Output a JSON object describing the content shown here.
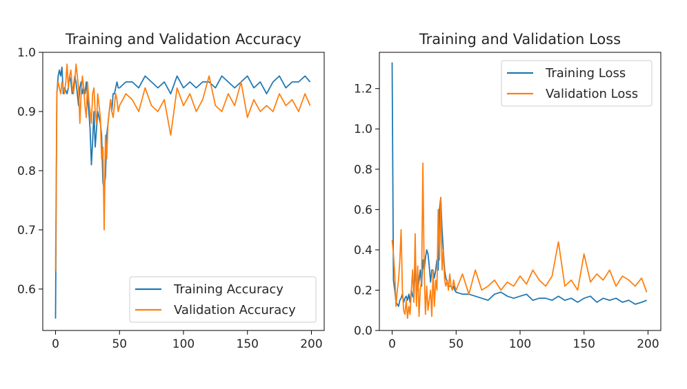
{
  "chart_data": [
    {
      "type": "line",
      "title": "Training and Validation Accuracy",
      "xlabel": "",
      "ylabel": "",
      "xlim": [
        -10,
        210
      ],
      "ylim": [
        0.53,
        1.0
      ],
      "xticks": [
        0,
        50,
        100,
        150,
        200
      ],
      "yticks": [
        0.6,
        0.7,
        0.8,
        0.9,
        1.0
      ],
      "yticklabels": [
        "0.6",
        "0.7",
        "0.8",
        "0.9",
        "1.0"
      ],
      "grid": false,
      "legend": "lower-right",
      "series": [
        {
          "name": "Training Accuracy",
          "color": "#1f77b4",
          "x": [
            0,
            1,
            2,
            3,
            4,
            5,
            6,
            7,
            8,
            9,
            10,
            11,
            12,
            13,
            14,
            15,
            16,
            17,
            18,
            19,
            20,
            21,
            22,
            23,
            24,
            25,
            26,
            27,
            28,
            29,
            30,
            31,
            32,
            33,
            34,
            35,
            36,
            37,
            38,
            39,
            40,
            41,
            42,
            43,
            44,
            45,
            46,
            47,
            48,
            49,
            50,
            55,
            60,
            65,
            70,
            75,
            80,
            85,
            90,
            95,
            100,
            105,
            110,
            115,
            120,
            125,
            130,
            135,
            140,
            145,
            150,
            155,
            160,
            165,
            170,
            175,
            180,
            185,
            190,
            195,
            199
          ],
          "values": [
            0.55,
            0.93,
            0.96,
            0.97,
            0.96,
            0.975,
            0.93,
            0.94,
            0.935,
            0.93,
            0.94,
            0.96,
            0.95,
            0.93,
            0.94,
            0.96,
            0.95,
            0.93,
            0.91,
            0.94,
            0.95,
            0.93,
            0.94,
            0.93,
            0.95,
            0.92,
            0.9,
            0.87,
            0.81,
            0.85,
            0.9,
            0.84,
            0.87,
            0.9,
            0.89,
            0.88,
            0.86,
            0.78,
            0.77,
            0.79,
            0.86,
            0.88,
            0.9,
            0.92,
            0.9,
            0.93,
            0.93,
            0.94,
            0.95,
            0.94,
            0.94,
            0.95,
            0.95,
            0.94,
            0.96,
            0.95,
            0.94,
            0.95,
            0.93,
            0.96,
            0.94,
            0.95,
            0.94,
            0.95,
            0.95,
            0.94,
            0.96,
            0.95,
            0.94,
            0.95,
            0.96,
            0.94,
            0.95,
            0.93,
            0.95,
            0.96,
            0.94,
            0.95,
            0.95,
            0.96,
            0.95
          ]
        },
        {
          "name": "Validation Accuracy",
          "color": "#ff7f0e",
          "x": [
            0,
            1,
            2,
            3,
            4,
            5,
            6,
            7,
            8,
            9,
            10,
            11,
            12,
            13,
            14,
            15,
            16,
            17,
            18,
            19,
            20,
            21,
            22,
            23,
            24,
            25,
            26,
            27,
            28,
            29,
            30,
            31,
            32,
            33,
            34,
            35,
            36,
            37,
            38,
            39,
            40,
            41,
            42,
            43,
            44,
            45,
            46,
            47,
            48,
            49,
            50,
            55,
            60,
            65,
            70,
            75,
            80,
            85,
            90,
            95,
            100,
            105,
            110,
            115,
            120,
            125,
            130,
            135,
            140,
            145,
            150,
            155,
            160,
            165,
            170,
            175,
            180,
            185,
            190,
            195,
            199
          ],
          "values": [
            0.63,
            0.93,
            0.95,
            0.94,
            0.93,
            0.95,
            0.94,
            0.93,
            0.95,
            0.98,
            0.94,
            0.96,
            0.97,
            0.94,
            0.93,
            0.95,
            0.98,
            0.96,
            0.94,
            0.88,
            0.93,
            0.96,
            0.94,
            0.91,
            0.89,
            0.95,
            0.92,
            0.9,
            0.88,
            0.93,
            0.94,
            0.9,
            0.88,
            0.93,
            0.91,
            0.89,
            0.82,
            0.84,
            0.7,
            0.86,
            0.82,
            0.88,
            0.9,
            0.92,
            0.9,
            0.89,
            0.91,
            0.93,
            0.92,
            0.9,
            0.91,
            0.93,
            0.92,
            0.9,
            0.94,
            0.91,
            0.9,
            0.92,
            0.86,
            0.94,
            0.91,
            0.93,
            0.9,
            0.92,
            0.96,
            0.91,
            0.9,
            0.93,
            0.91,
            0.95,
            0.89,
            0.92,
            0.9,
            0.91,
            0.9,
            0.93,
            0.91,
            0.92,
            0.9,
            0.93,
            0.91
          ]
        }
      ]
    },
    {
      "type": "line",
      "title": "Training and Validation Loss",
      "xlabel": "",
      "ylabel": "",
      "xlim": [
        -10,
        210
      ],
      "ylim": [
        0.0,
        1.38
      ],
      "xticks": [
        0,
        50,
        100,
        150,
        200
      ],
      "yticks": [
        0.0,
        0.2,
        0.4,
        0.6,
        0.8,
        1.0,
        1.2
      ],
      "yticklabels": [
        "0.0",
        "0.2",
        "0.4",
        "0.6",
        "0.8",
        "1.0",
        "1.2"
      ],
      "grid": false,
      "legend": "upper-right",
      "series": [
        {
          "name": "Training Loss",
          "color": "#1f77b4",
          "x": [
            0,
            1,
            2,
            3,
            4,
            5,
            6,
            7,
            8,
            9,
            10,
            11,
            12,
            13,
            14,
            15,
            16,
            17,
            18,
            19,
            20,
            21,
            22,
            23,
            24,
            25,
            26,
            27,
            28,
            29,
            30,
            31,
            32,
            33,
            34,
            35,
            36,
            37,
            38,
            39,
            40,
            41,
            42,
            43,
            44,
            45,
            46,
            47,
            48,
            49,
            50,
            55,
            60,
            65,
            70,
            75,
            80,
            85,
            90,
            95,
            100,
            105,
            110,
            115,
            120,
            125,
            130,
            135,
            140,
            145,
            150,
            155,
            160,
            165,
            170,
            175,
            180,
            185,
            190,
            195,
            199
          ],
          "values": [
            1.33,
            0.25,
            0.2,
            0.14,
            0.13,
            0.12,
            0.15,
            0.16,
            0.18,
            0.14,
            0.16,
            0.17,
            0.15,
            0.18,
            0.14,
            0.2,
            0.17,
            0.16,
            0.32,
            0.22,
            0.2,
            0.25,
            0.3,
            0.22,
            0.35,
            0.3,
            0.36,
            0.4,
            0.38,
            0.32,
            0.24,
            0.3,
            0.3,
            0.26,
            0.3,
            0.35,
            0.3,
            0.6,
            0.66,
            0.5,
            0.4,
            0.3,
            0.26,
            0.24,
            0.22,
            0.22,
            0.22,
            0.2,
            0.22,
            0.2,
            0.19,
            0.18,
            0.18,
            0.17,
            0.16,
            0.15,
            0.18,
            0.19,
            0.17,
            0.16,
            0.17,
            0.18,
            0.15,
            0.16,
            0.16,
            0.15,
            0.17,
            0.15,
            0.16,
            0.14,
            0.16,
            0.17,
            0.14,
            0.16,
            0.15,
            0.16,
            0.14,
            0.15,
            0.13,
            0.14,
            0.15
          ]
        },
        {
          "name": "Validation Loss",
          "color": "#ff7f0e",
          "x": [
            0,
            1,
            2,
            3,
            4,
            5,
            6,
            7,
            8,
            9,
            10,
            11,
            12,
            13,
            14,
            15,
            16,
            17,
            18,
            19,
            20,
            21,
            22,
            23,
            24,
            25,
            26,
            27,
            28,
            29,
            30,
            31,
            32,
            33,
            34,
            35,
            36,
            37,
            38,
            39,
            40,
            41,
            42,
            43,
            44,
            45,
            46,
            47,
            48,
            49,
            50,
            55,
            60,
            65,
            70,
            75,
            80,
            85,
            90,
            95,
            100,
            105,
            110,
            115,
            120,
            125,
            130,
            135,
            140,
            145,
            150,
            155,
            160,
            165,
            170,
            175,
            180,
            185,
            190,
            195,
            199
          ],
          "values": [
            0.45,
            0.38,
            0.28,
            0.12,
            0.2,
            0.25,
            0.35,
            0.5,
            0.2,
            0.1,
            0.08,
            0.15,
            0.06,
            0.12,
            0.08,
            0.2,
            0.3,
            0.14,
            0.48,
            0.12,
            0.32,
            0.07,
            0.2,
            0.25,
            0.83,
            0.3,
            0.08,
            0.22,
            0.1,
            0.15,
            0.2,
            0.07,
            0.3,
            0.12,
            0.25,
            0.2,
            0.6,
            0.35,
            0.66,
            0.3,
            0.4,
            0.25,
            0.22,
            0.25,
            0.2,
            0.28,
            0.22,
            0.2,
            0.25,
            0.22,
            0.2,
            0.28,
            0.18,
            0.3,
            0.2,
            0.22,
            0.25,
            0.2,
            0.24,
            0.22,
            0.27,
            0.23,
            0.3,
            0.25,
            0.22,
            0.27,
            0.44,
            0.22,
            0.25,
            0.2,
            0.38,
            0.24,
            0.28,
            0.25,
            0.3,
            0.22,
            0.27,
            0.25,
            0.22,
            0.26,
            0.19
          ]
        }
      ]
    }
  ]
}
